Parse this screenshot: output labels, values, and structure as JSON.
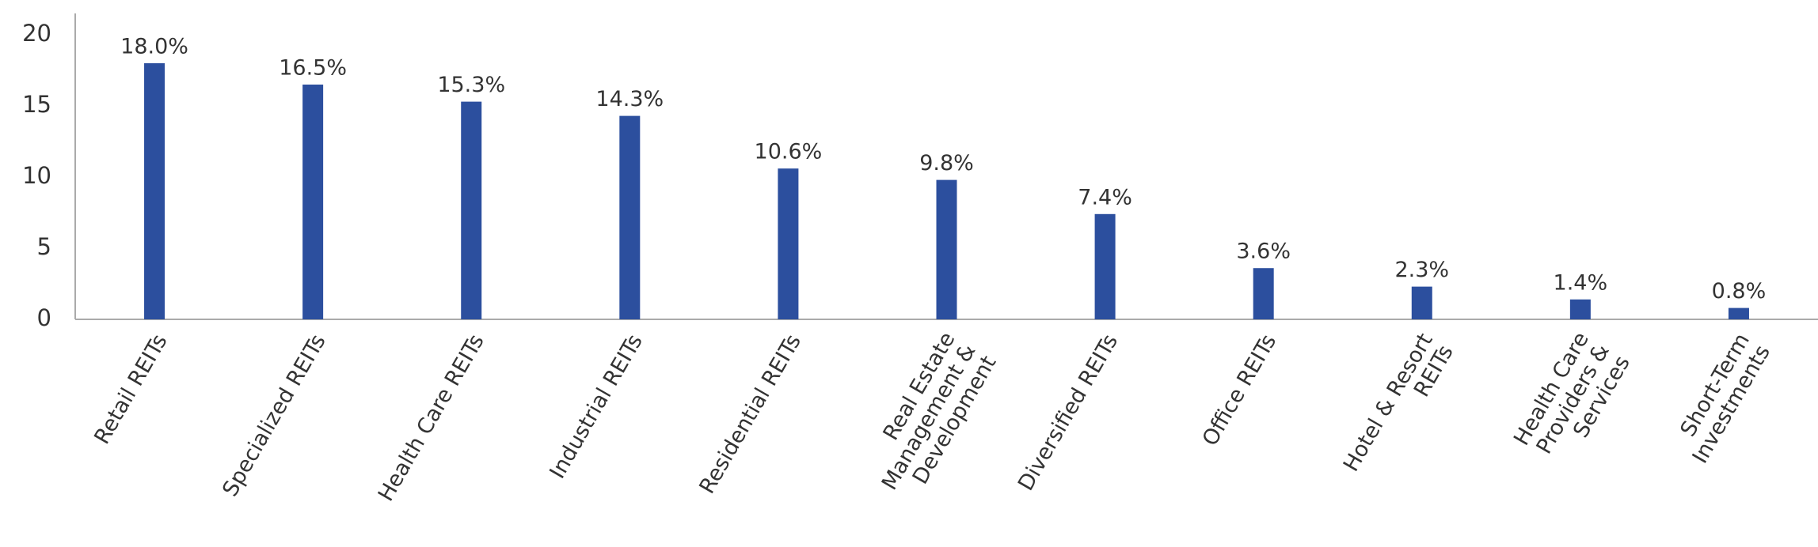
{
  "chart_data": {
    "type": "bar",
    "categories": [
      "Retail REITs",
      "Specialized REITs",
      "Health Care REITs",
      "Industrial REITs",
      "Residential REITs",
      "Real Estate\nManagement &\nDevelopment",
      "Diversified REITs",
      "Office REITs",
      "Hotel & Resort\nREITs",
      "Health Care\nProviders &\nServices",
      "Short-Term\nInvestments"
    ],
    "values": [
      18.0,
      16.5,
      15.3,
      14.3,
      10.6,
      9.8,
      7.4,
      3.6,
      2.3,
      1.4,
      0.8
    ],
    "value_labels": [
      "18.0%",
      "16.5%",
      "15.3%",
      "14.3%",
      "10.6%",
      "9.8%",
      "7.4%",
      "3.6%",
      "2.3%",
      "1.4%",
      "0.8%"
    ],
    "color": "#2c4f9e",
    "ylim": [
      0,
      21.5
    ],
    "yticks": [
      0,
      5,
      10,
      15,
      20
    ],
    "grid": false
  }
}
